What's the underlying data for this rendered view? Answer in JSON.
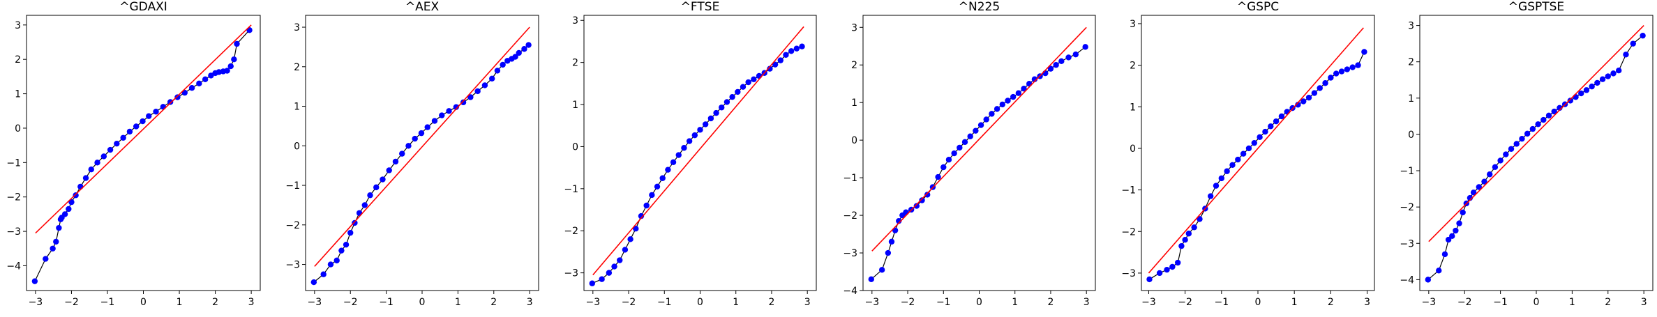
{
  "figure": {
    "colors": {
      "points": "#0000ff",
      "connector": "#000000",
      "reference_line": "#ff0000",
      "axes": "#000000"
    }
  },
  "chart_data": [
    {
      "type": "scatter",
      "title": "^GDAXI",
      "xlabel": "",
      "ylabel": "",
      "xlim": [
        -3.25,
        3.25
      ],
      "ylim": [
        -4.72,
        3.28
      ],
      "xticks": [
        -3,
        -2,
        -1,
        0,
        1,
        2,
        3
      ],
      "yticks": [
        -4,
        -3,
        -2,
        -1,
        0,
        1,
        2,
        3
      ],
      "grid": false,
      "reference_line": {
        "x": [
          -3.0,
          3.0
        ],
        "y": [
          -3.05,
          3.0
        ]
      },
      "series": [
        {
          "marker": "circle",
          "x": [
            -3.02,
            -2.72,
            -2.52,
            -2.43,
            -2.35,
            -2.3,
            -2.27,
            -2.18,
            -2.08,
            -2.0,
            -1.88,
            -1.75,
            -1.6,
            -1.45,
            -1.28,
            -1.1,
            -0.92,
            -0.74,
            -0.56,
            -0.38,
            -0.2,
            -0.02,
            0.15,
            0.35,
            0.55,
            0.75,
            0.95,
            1.15,
            1.35,
            1.55,
            1.72,
            1.88,
            2.0,
            2.1,
            2.22,
            2.33,
            2.43,
            2.52,
            2.6,
            2.95
          ],
          "y": [
            -4.45,
            -3.8,
            -3.5,
            -3.3,
            -2.9,
            -2.65,
            -2.6,
            -2.5,
            -2.35,
            -2.15,
            -1.95,
            -1.7,
            -1.45,
            -1.2,
            -1.0,
            -0.82,
            -0.63,
            -0.45,
            -0.28,
            -0.1,
            0.05,
            0.2,
            0.35,
            0.48,
            0.62,
            0.76,
            0.9,
            1.03,
            1.17,
            1.3,
            1.42,
            1.53,
            1.6,
            1.63,
            1.65,
            1.67,
            1.8,
            2.0,
            2.45,
            2.85
          ]
        }
      ]
    },
    {
      "type": "scatter",
      "title": "^AEX",
      "xlabel": "",
      "ylabel": "",
      "xlim": [
        -3.25,
        3.25
      ],
      "ylim": [
        -3.66,
        3.3
      ],
      "xticks": [
        -3,
        -2,
        -1,
        0,
        1,
        2,
        3
      ],
      "yticks": [
        -3,
        -2,
        -1,
        0,
        1,
        2,
        3
      ],
      "grid": false,
      "reference_line": {
        "x": [
          -3.0,
          3.0
        ],
        "y": [
          -3.05,
          3.0
        ]
      },
      "series": [
        {
          "marker": "circle",
          "x": [
            -3.02,
            -2.75,
            -2.55,
            -2.38,
            -2.25,
            -2.12,
            -2.0,
            -1.88,
            -1.75,
            -1.6,
            -1.45,
            -1.28,
            -1.1,
            -0.92,
            -0.74,
            -0.56,
            -0.38,
            -0.2,
            -0.02,
            0.15,
            0.35,
            0.55,
            0.75,
            0.95,
            1.15,
            1.35,
            1.55,
            1.75,
            1.95,
            2.1,
            2.25,
            2.38,
            2.5,
            2.6,
            2.7,
            2.85,
            2.97
          ],
          "y": [
            -3.45,
            -3.25,
            -3.0,
            -2.9,
            -2.65,
            -2.5,
            -2.2,
            -1.95,
            -1.7,
            -1.5,
            -1.25,
            -1.05,
            -0.85,
            -0.62,
            -0.4,
            -0.2,
            0.0,
            0.18,
            0.32,
            0.47,
            0.63,
            0.77,
            0.88,
            0.98,
            1.1,
            1.23,
            1.38,
            1.53,
            1.7,
            1.9,
            2.05,
            2.15,
            2.2,
            2.25,
            2.35,
            2.45,
            2.55
          ]
        }
      ]
    },
    {
      "type": "scatter",
      "title": "^FTSE",
      "xlabel": "",
      "ylabel": "",
      "xlim": [
        -3.25,
        3.25
      ],
      "ylim": [
        -3.42,
        3.12
      ],
      "xticks": [
        -3,
        -2,
        -1,
        0,
        1,
        2,
        3
      ],
      "yticks": [
        -3,
        -2,
        -1,
        0,
        1,
        2,
        3
      ],
      "grid": false,
      "reference_line": {
        "x": [
          -3.0,
          2.9
        ],
        "y": [
          -3.05,
          2.85
        ]
      },
      "series": [
        {
          "marker": "circle",
          "x": [
            -3.02,
            -2.75,
            -2.55,
            -2.4,
            -2.25,
            -2.1,
            -1.95,
            -1.8,
            -1.65,
            -1.5,
            -1.35,
            -1.2,
            -1.05,
            -0.9,
            -0.75,
            -0.6,
            -0.45,
            -0.3,
            -0.15,
            0.0,
            0.15,
            0.3,
            0.45,
            0.6,
            0.75,
            0.9,
            1.05,
            1.2,
            1.35,
            1.5,
            1.65,
            1.8,
            1.95,
            2.1,
            2.25,
            2.4,
            2.55,
            2.7,
            2.85
          ],
          "y": [
            -3.25,
            -3.15,
            -3.0,
            -2.85,
            -2.7,
            -2.45,
            -2.2,
            -1.95,
            -1.65,
            -1.4,
            -1.15,
            -0.95,
            -0.75,
            -0.55,
            -0.37,
            -0.2,
            -0.03,
            0.13,
            0.27,
            0.4,
            0.53,
            0.67,
            0.8,
            0.93,
            1.06,
            1.18,
            1.3,
            1.42,
            1.53,
            1.6,
            1.68,
            1.75,
            1.85,
            1.95,
            2.05,
            2.18,
            2.27,
            2.33,
            2.38
          ]
        }
      ]
    },
    {
      "type": "scatter",
      "title": "^N225",
      "xlabel": "",
      "ylabel": "",
      "xlim": [
        -3.25,
        3.25
      ],
      "ylim": [
        -4.0,
        3.32
      ],
      "xticks": [
        -3,
        -2,
        -1,
        0,
        1,
        2,
        3
      ],
      "yticks": [
        -4,
        -3,
        -2,
        -1,
        0,
        1,
        2,
        3
      ],
      "grid": false,
      "reference_line": {
        "x": [
          -3.0,
          3.0
        ],
        "y": [
          -2.95,
          3.0
        ]
      },
      "series": [
        {
          "marker": "circle",
          "x": [
            -3.02,
            -2.72,
            -2.55,
            -2.45,
            -2.35,
            -2.25,
            -2.15,
            -2.05,
            -1.9,
            -1.75,
            -1.6,
            -1.45,
            -1.3,
            -1.15,
            -1.0,
            -0.85,
            -0.7,
            -0.55,
            -0.4,
            -0.25,
            -0.1,
            0.05,
            0.2,
            0.35,
            0.5,
            0.65,
            0.8,
            0.95,
            1.1,
            1.25,
            1.4,
            1.55,
            1.7,
            1.85,
            2.0,
            2.15,
            2.3,
            2.5,
            2.7,
            2.97
          ],
          "y": [
            -3.7,
            -3.45,
            -3.0,
            -2.7,
            -2.4,
            -2.15,
            -2.0,
            -1.92,
            -1.85,
            -1.75,
            -1.6,
            -1.45,
            -1.25,
            -0.98,
            -0.72,
            -0.52,
            -0.35,
            -0.2,
            -0.05,
            0.1,
            0.25,
            0.4,
            0.55,
            0.7,
            0.83,
            0.95,
            1.05,
            1.15,
            1.25,
            1.37,
            1.5,
            1.62,
            1.7,
            1.78,
            1.9,
            2.0,
            2.1,
            2.2,
            2.28,
            2.48
          ]
        }
      ]
    },
    {
      "type": "scatter",
      "title": "^GSPC",
      "xlabel": "",
      "ylabel": "",
      "xlim": [
        -3.2,
        3.2
      ],
      "ylim": [
        -3.42,
        3.2
      ],
      "xticks": [
        -3,
        -2,
        -1,
        0,
        1,
        2,
        3
      ],
      "yticks": [
        -3,
        -2,
        -1,
        0,
        1,
        2,
        3
      ],
      "grid": false,
      "reference_line": {
        "x": [
          -3.0,
          2.9
        ],
        "y": [
          -3.0,
          2.9
        ]
      },
      "series": [
        {
          "marker": "circle",
          "x": [
            -2.98,
            -2.7,
            -2.5,
            -2.35,
            -2.2,
            -2.1,
            -2.0,
            -1.9,
            -1.75,
            -1.6,
            -1.45,
            -1.3,
            -1.15,
            -1.0,
            -0.85,
            -0.7,
            -0.55,
            -0.4,
            -0.25,
            -0.1,
            0.05,
            0.2,
            0.35,
            0.5,
            0.65,
            0.8,
            0.95,
            1.1,
            1.25,
            1.4,
            1.55,
            1.7,
            1.85,
            2.0,
            2.15,
            2.3,
            2.45,
            2.6,
            2.75,
            2.92
          ],
          "y": [
            -3.15,
            -3.0,
            -2.92,
            -2.85,
            -2.75,
            -2.35,
            -2.2,
            -2.05,
            -1.9,
            -1.7,
            -1.45,
            -1.15,
            -0.9,
            -0.72,
            -0.55,
            -0.4,
            -0.27,
            -0.13,
            0.0,
            0.13,
            0.27,
            0.4,
            0.53,
            0.65,
            0.77,
            0.88,
            0.97,
            1.05,
            1.13,
            1.22,
            1.33,
            1.45,
            1.57,
            1.7,
            1.8,
            1.85,
            1.9,
            1.95,
            2.0,
            2.32
          ]
        }
      ]
    },
    {
      "type": "scatter",
      "title": "^GSPTSE",
      "xlabel": "",
      "ylabel": "",
      "xlim": [
        -3.25,
        3.25
      ],
      "ylim": [
        -4.3,
        3.28
      ],
      "xticks": [
        -3,
        -2,
        -1,
        0,
        1,
        2,
        3
      ],
      "yticks": [
        -4,
        -3,
        -2,
        -1,
        0,
        1,
        2,
        3
      ],
      "grid": false,
      "reference_line": {
        "x": [
          -3.0,
          3.0
        ],
        "y": [
          -2.95,
          3.0
        ]
      },
      "series": [
        {
          "marker": "circle",
          "x": [
            -3.02,
            -2.72,
            -2.55,
            -2.45,
            -2.35,
            -2.25,
            -2.15,
            -2.05,
            -1.95,
            -1.85,
            -1.75,
            -1.6,
            -1.45,
            -1.3,
            -1.15,
            -1.0,
            -0.85,
            -0.7,
            -0.55,
            -0.4,
            -0.25,
            -0.1,
            0.05,
            0.2,
            0.35,
            0.5,
            0.65,
            0.8,
            0.95,
            1.1,
            1.25,
            1.4,
            1.55,
            1.7,
            1.85,
            2.0,
            2.15,
            2.3,
            2.5,
            2.7,
            2.97
          ],
          "y": [
            -4.0,
            -3.75,
            -3.3,
            -2.9,
            -2.8,
            -2.65,
            -2.45,
            -2.15,
            -1.9,
            -1.75,
            -1.6,
            -1.45,
            -1.3,
            -1.1,
            -0.9,
            -0.72,
            -0.55,
            -0.4,
            -0.26,
            -0.12,
            0.02,
            0.15,
            0.28,
            0.4,
            0.52,
            0.63,
            0.73,
            0.83,
            0.93,
            1.03,
            1.13,
            1.22,
            1.32,
            1.42,
            1.52,
            1.6,
            1.68,
            1.76,
            2.2,
            2.5,
            2.72
          ]
        }
      ]
    }
  ]
}
